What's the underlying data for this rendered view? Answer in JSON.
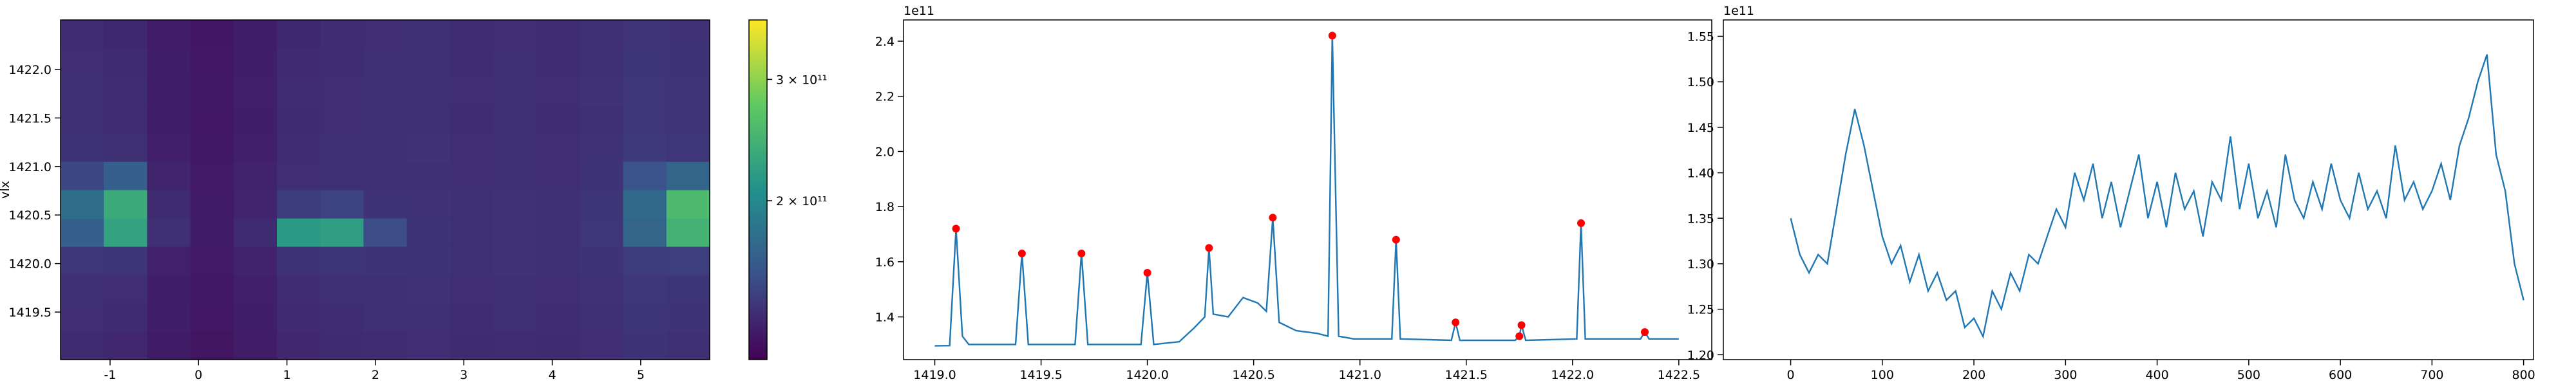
{
  "chart_data": [
    {
      "type": "heatmap",
      "ylabel": "vlx",
      "xlim": [
        -1.56,
        5.78
      ],
      "ylim": [
        1419.01,
        1422.51
      ],
      "xticks": [
        -1,
        0,
        1,
        2,
        3,
        4,
        5
      ],
      "yticks": [
        1419.5,
        {
          "value": 1420,
          "label": "1420.0"
        },
        1420.5,
        {
          "value": 1421,
          "label": "1421.0"
        },
        1421.5,
        {
          "value": 1422,
          "label": "1422.0"
        }
      ],
      "clim": [
        69000000000.0,
        349000000000.0
      ],
      "cticks": [
        {
          "value": 200000000000.0,
          "label": "2 × 10¹¹"
        },
        {
          "value": 300000000000.0,
          "label": "3 × 10¹¹"
        }
      ],
      "z": [
        [
          105000000000.0,
          102000000000.0,
          92000000000.0,
          86000000000.0,
          93000000000.0,
          102000000000.0,
          105000000000.0,
          107000000000.0,
          108000000000.0,
          105000000000.0,
          107000000000.0,
          105000000000.0,
          108000000000.0,
          112000000000.0,
          110000000000.0
        ],
        [
          108000000000.0,
          105000000000.0,
          94000000000.0,
          88000000000.0,
          95000000000.0,
          104000000000.0,
          107000000000.0,
          109000000000.0,
          110000000000.0,
          107000000000.0,
          109000000000.0,
          107000000000.0,
          110000000000.0,
          114000000000.0,
          112000000000.0
        ],
        [
          110000000000.0,
          108000000000.0,
          95000000000.0,
          89000000000.0,
          96000000000.0,
          106000000000.0,
          109000000000.0,
          110000000000.0,
          111000000000.0,
          108000000000.0,
          110000000000.0,
          108000000000.0,
          111000000000.0,
          116000000000.0,
          114000000000.0
        ],
        [
          115000000000.0,
          114000000000.0,
          97000000000.0,
          90000000000.0,
          98000000000.0,
          112000000000.0,
          114000000000.0,
          112000000000.0,
          112000000000.0,
          109000000000.0,
          111000000000.0,
          109000000000.0,
          112000000000.0,
          120000000000.0,
          122000000000.0
        ],
        [
          155000000000.0,
          230000000000.0,
          110000000000.0,
          92000000000.0,
          105000000000.0,
          220000000000.0,
          225000000000.0,
          135000000000.0,
          112000000000.0,
          110000000000.0,
          111000000000.0,
          110000000000.0,
          115000000000.0,
          160000000000.0,
          250000000000.0
        ],
        [
          170000000000.0,
          240000000000.0,
          105000000000.0,
          91000000000.0,
          100000000000.0,
          120000000000.0,
          125000000000.0,
          112000000000.0,
          111000000000.0,
          109000000000.0,
          111000000000.0,
          109000000000.0,
          114000000000.0,
          165000000000.0,
          260000000000.0
        ],
        [
          130000000000.0,
          155000000000.0,
          100000000000.0,
          90000000000.0,
          98000000000.0,
          108000000000.0,
          110000000000.0,
          110000000000.0,
          110000000000.0,
          108000000000.0,
          110000000000.0,
          108000000000.0,
          112000000000.0,
          140000000000.0,
          160000000000.0
        ],
        [
          112000000000.0,
          110000000000.0,
          96000000000.0,
          89000000000.0,
          96000000000.0,
          106000000000.0,
          109000000000.0,
          110000000000.0,
          111000000000.0,
          108000000000.0,
          110000000000.0,
          108000000000.0,
          111000000000.0,
          118000000000.0,
          115000000000.0
        ],
        [
          109000000000.0,
          106000000000.0,
          95000000000.0,
          88000000000.0,
          95000000000.0,
          105000000000.0,
          108000000000.0,
          109000000000.0,
          110000000000.0,
          107000000000.0,
          109000000000.0,
          107000000000.0,
          110000000000.0,
          115000000000.0,
          113000000000.0
        ],
        [
          110000000000.0,
          107000000000.0,
          95000000000.0,
          89000000000.0,
          96000000000.0,
          106000000000.0,
          108000000000.0,
          110000000000.0,
          110000000000.0,
          108000000000.0,
          110000000000.0,
          108000000000.0,
          111000000000.0,
          115000000000.0,
          113000000000.0
        ],
        [
          108000000000.0,
          105000000000.0,
          94000000000.0,
          88000000000.0,
          95000000000.0,
          104000000000.0,
          107000000000.0,
          109000000000.0,
          110000000000.0,
          107000000000.0,
          109000000000.0,
          107000000000.0,
          110000000000.0,
          114000000000.0,
          112000000000.0
        ],
        [
          106000000000.0,
          103000000000.0,
          93000000000.0,
          87000000000.0,
          94000000000.0,
          103000000000.0,
          106000000000.0,
          108000000000.0,
          109000000000.0,
          106000000000.0,
          108000000000.0,
          106000000000.0,
          109000000000.0,
          113000000000.0,
          111000000000.0
        ]
      ]
    },
    {
      "type": "line",
      "y_offset_text": "1e11",
      "xlim": [
        1418.853,
        1422.655
      ],
      "ylim": [
        1.245,
        2.477
      ],
      "xticks": [
        {
          "value": 1419,
          "label": "1419.0"
        },
        1419.5,
        {
          "value": 1420,
          "label": "1420.0"
        },
        1420.5,
        {
          "value": 1421,
          "label": "1421.0"
        },
        1421.5,
        {
          "value": 1422,
          "label": "1422.0"
        },
        1422.5
      ],
      "yticks": [
        1.4,
        1.6,
        1.8,
        {
          "value": 2,
          "label": "2.0"
        },
        2.2,
        2.4
      ],
      "series": [
        {
          "color": "#1f77b4",
          "x": [
            1419.0,
            1419.07,
            1419.1,
            1419.13,
            1419.16,
            1419.38,
            1419.41,
            1419.44,
            1419.66,
            1419.69,
            1419.72,
            1419.97,
            1420.0,
            1420.03,
            1420.15,
            1420.22,
            1420.27,
            1420.29,
            1420.31,
            1420.38,
            1420.45,
            1420.52,
            1420.56,
            1420.59,
            1420.62,
            1420.7,
            1420.8,
            1420.85,
            1420.87,
            1420.9,
            1420.97,
            1421.15,
            1421.17,
            1421.19,
            1421.43,
            1421.45,
            1421.47,
            1421.73,
            1421.75,
            1421.76,
            1421.78,
            1422.02,
            1422.04,
            1422.06,
            1422.32,
            1422.34,
            1422.36,
            1422.5
          ],
          "values": [
            1.295,
            1.296,
            1.72,
            1.33,
            1.3,
            1.3,
            1.63,
            1.3,
            1.3,
            1.63,
            1.3,
            1.3,
            1.56,
            1.3,
            1.31,
            1.36,
            1.4,
            1.65,
            1.41,
            1.4,
            1.47,
            1.45,
            1.42,
            1.76,
            1.38,
            1.35,
            1.34,
            1.33,
            2.42,
            1.33,
            1.32,
            1.32,
            1.68,
            1.32,
            1.315,
            1.38,
            1.315,
            1.315,
            1.33,
            1.37,
            1.315,
            1.32,
            1.74,
            1.32,
            1.32,
            1.345,
            1.32,
            1.32
          ]
        },
        {
          "type": "scatter",
          "color": "#ff0000",
          "x": [
            1419.1,
            1419.41,
            1419.69,
            1420.0,
            1420.29,
            1420.59,
            1420.87,
            1421.17,
            1421.45,
            1421.75,
            1421.76,
            1422.04,
            1422.34
          ],
          "values": [
            1.72,
            1.63,
            1.63,
            1.56,
            1.65,
            1.76,
            2.42,
            1.68,
            1.38,
            1.33,
            1.37,
            1.74,
            1.345
          ]
        }
      ]
    },
    {
      "type": "line",
      "y_offset_text": "1e11",
      "xlim": [
        -73.5,
        810.8
      ],
      "ylim": [
        1.1946,
        1.568
      ],
      "xticks": [
        0,
        100,
        200,
        300,
        400,
        500,
        600,
        700,
        800
      ],
      "yticks": [
        {
          "value": 1.2,
          "label": "1.20"
        },
        1.25,
        {
          "value": 1.3,
          "label": "1.30"
        },
        1.35,
        {
          "value": 1.4,
          "label": "1.40"
        },
        1.45,
        {
          "value": 1.5,
          "label": "1.50"
        },
        1.55
      ],
      "series": [
        {
          "color": "#1f77b4",
          "x": [
            0,
            10,
            20,
            30,
            40,
            50,
            60,
            70,
            80,
            90,
            100,
            110,
            120,
            130,
            140,
            150,
            160,
            170,
            180,
            190,
            200,
            210,
            220,
            230,
            240,
            250,
            260,
            270,
            280,
            290,
            300,
            310,
            320,
            330,
            340,
            350,
            360,
            370,
            380,
            390,
            400,
            410,
            420,
            430,
            440,
            450,
            460,
            470,
            480,
            490,
            500,
            510,
            520,
            530,
            540,
            550,
            560,
            570,
            580,
            590,
            600,
            610,
            620,
            630,
            640,
            650,
            660,
            670,
            680,
            690,
            700,
            710,
            720,
            730,
            740,
            750,
            760,
            770,
            780,
            790,
            800
          ],
          "values": [
            1.35,
            1.31,
            1.29,
            1.31,
            1.3,
            1.36,
            1.42,
            1.47,
            1.43,
            1.38,
            1.33,
            1.3,
            1.32,
            1.28,
            1.31,
            1.27,
            1.29,
            1.26,
            1.27,
            1.23,
            1.24,
            1.22,
            1.27,
            1.25,
            1.29,
            1.27,
            1.31,
            1.3,
            1.33,
            1.36,
            1.34,
            1.4,
            1.37,
            1.41,
            1.35,
            1.39,
            1.34,
            1.38,
            1.42,
            1.35,
            1.39,
            1.34,
            1.4,
            1.36,
            1.38,
            1.33,
            1.39,
            1.37,
            1.44,
            1.36,
            1.41,
            1.35,
            1.38,
            1.34,
            1.42,
            1.37,
            1.35,
            1.39,
            1.36,
            1.41,
            1.37,
            1.35,
            1.4,
            1.36,
            1.38,
            1.35,
            1.43,
            1.37,
            1.39,
            1.36,
            1.38,
            1.41,
            1.37,
            1.43,
            1.46,
            1.5,
            1.53,
            1.42,
            1.38,
            1.3,
            1.26
          ]
        }
      ]
    }
  ]
}
